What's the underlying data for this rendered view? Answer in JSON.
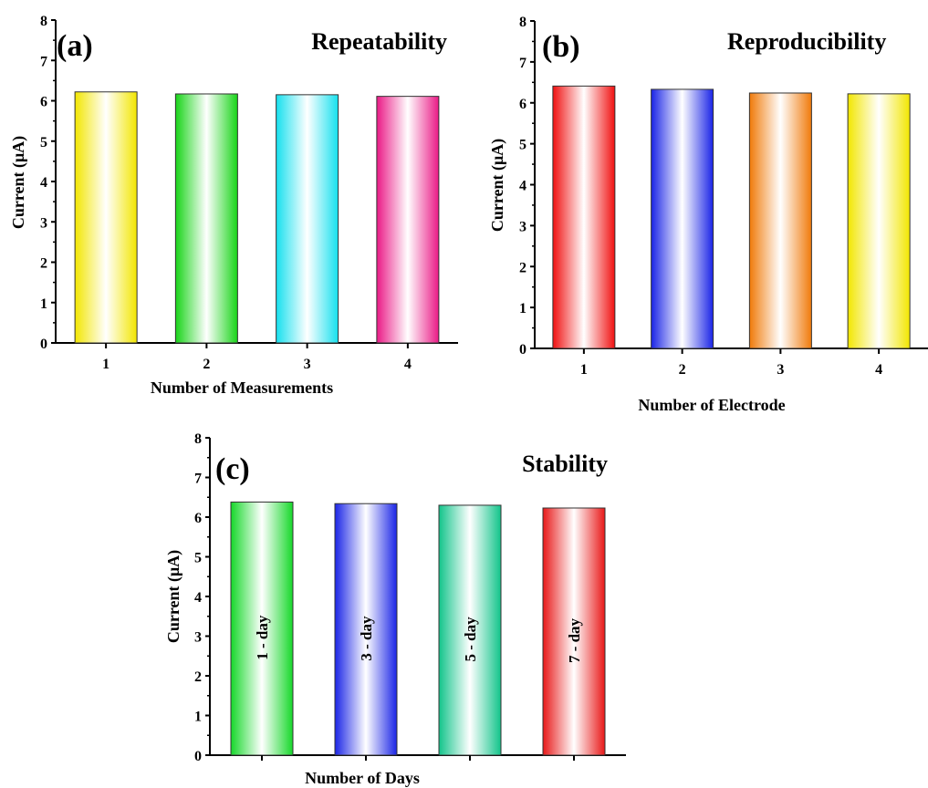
{
  "chart_data": [
    {
      "panel": "(a)",
      "type": "bar",
      "title": "Repeatability",
      "xlabel": "Number of Measurements",
      "ylabel": "Current (μA)",
      "categories": [
        "1",
        "2",
        "3",
        "4"
      ],
      "values": [
        6.22,
        6.17,
        6.15,
        6.11
      ],
      "ylim": [
        0,
        8
      ],
      "yticks": [
        "0",
        "1",
        "2",
        "3",
        "4",
        "5",
        "6",
        "7",
        "8"
      ],
      "colors": [
        "#f2e600",
        "#18d418",
        "#16e0ee",
        "#ea1a86"
      ],
      "bar_labels": [],
      "grid": false
    },
    {
      "panel": "(b)",
      "type": "bar",
      "title": "Reproducibility",
      "xlabel": "Number of Electrode",
      "ylabel": "Current (μA)",
      "categories": [
        "1",
        "2",
        "3",
        "4"
      ],
      "values": [
        6.41,
        6.33,
        6.24,
        6.22
      ],
      "ylim": [
        0,
        8
      ],
      "yticks": [
        "0",
        "1",
        "2",
        "3",
        "4",
        "5",
        "6",
        "7",
        "8"
      ],
      "colors": [
        "#f01010",
        "#1a24e6",
        "#f07a0a",
        "#f2e600"
      ],
      "bar_labels": [],
      "grid": false
    },
    {
      "panel": "(c)",
      "type": "bar",
      "title": "Stability",
      "xlabel": "Number of Days",
      "ylabel": "Current (μA)",
      "categories": [
        "",
        "",
        "",
        ""
      ],
      "values": [
        6.38,
        6.34,
        6.3,
        6.23
      ],
      "ylim": [
        0,
        8
      ],
      "yticks": [
        "0",
        "1",
        "2",
        "3",
        "4",
        "5",
        "6",
        "7",
        "8"
      ],
      "colors": [
        "#16d82a",
        "#1a24e6",
        "#12c48a",
        "#e81818"
      ],
      "bar_labels": [
        "1 - day",
        "3 - day",
        "5 - day",
        "7 - day"
      ],
      "grid": false
    }
  ]
}
